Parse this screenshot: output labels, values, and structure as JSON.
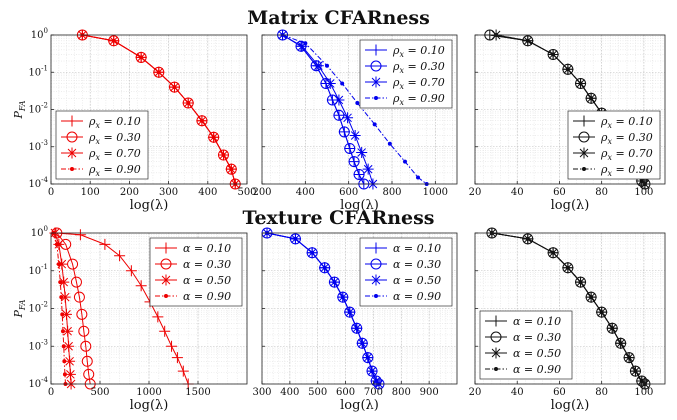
{
  "figure": {
    "top_title": "Matrix CFARness",
    "bottom_title": "Texture CFARness"
  },
  "chart_data": [
    {
      "type": "line",
      "row": "top",
      "color": "#ee0000",
      "xlabel": "log(λ)",
      "ylabel": "P_FA",
      "xlim": [
        0,
        500
      ],
      "xticks": [
        0,
        100,
        200,
        300,
        400,
        500
      ],
      "ylim": [
        0.0001,
        1
      ],
      "yscale": "log",
      "yticks": [
        "10^0",
        "10^-1",
        "10^-2",
        "10^-3",
        "10^-4"
      ],
      "grid": true,
      "legend_position": "bottom-left",
      "series": [
        {
          "name": "ρ_x = 0.10",
          "marker": "plus",
          "x": [
            80,
            160,
            230,
            275,
            315,
            350,
            385,
            415,
            440,
            460,
            470
          ],
          "y": [
            1,
            0.7,
            0.25,
            0.1,
            0.04,
            0.015,
            0.005,
            0.0018,
            0.0006,
            0.00025,
            0.0001
          ]
        },
        {
          "name": "ρ_x = 0.30",
          "marker": "circle",
          "x": [
            80,
            160,
            230,
            275,
            315,
            350,
            385,
            415,
            440,
            460,
            470
          ],
          "y": [
            1,
            0.7,
            0.25,
            0.1,
            0.04,
            0.015,
            0.005,
            0.0018,
            0.0006,
            0.00025,
            0.0001
          ]
        },
        {
          "name": "ρ_x = 0.70",
          "marker": "star",
          "x": [
            80,
            160,
            230,
            275,
            315,
            350,
            385,
            415,
            440,
            460,
            470
          ],
          "y": [
            1,
            0.7,
            0.25,
            0.1,
            0.04,
            0.015,
            0.005,
            0.0018,
            0.0006,
            0.00025,
            0.0001
          ]
        },
        {
          "name": "ρ_x = 0.90",
          "marker": "dot-dash",
          "x": [
            80,
            160,
            230,
            275,
            315,
            350,
            385,
            415,
            440,
            460,
            470
          ],
          "y": [
            1,
            0.7,
            0.25,
            0.1,
            0.04,
            0.015,
            0.005,
            0.0018,
            0.0006,
            0.00025,
            0.0001
          ]
        }
      ]
    },
    {
      "type": "line",
      "row": "top",
      "color": "#0000ee",
      "xlabel": "log(λ)",
      "ylabel": "",
      "xlim": [
        200,
        1100
      ],
      "xticks": [
        200,
        400,
        600,
        800,
        1000
      ],
      "ylim": [
        0.0001,
        1
      ],
      "yscale": "log",
      "grid": true,
      "legend_position": "top-right",
      "series": [
        {
          "name": "ρ_x = 0.10",
          "marker": "plus",
          "x": [
            295,
            380,
            450,
            495,
            525,
            555,
            580,
            605,
            625,
            648,
            670
          ],
          "y": [
            1,
            0.5,
            0.15,
            0.05,
            0.018,
            0.007,
            0.0025,
            0.0009,
            0.0004,
            0.00018,
            0.0001
          ]
        },
        {
          "name": "ρ_x = 0.30",
          "marker": "circle",
          "x": [
            295,
            380,
            450,
            495,
            525,
            555,
            580,
            605,
            625,
            648,
            670
          ],
          "y": [
            1,
            0.5,
            0.15,
            0.05,
            0.018,
            0.007,
            0.0025,
            0.0009,
            0.0004,
            0.00018,
            0.0001
          ]
        },
        {
          "name": "ρ_x = 0.70",
          "marker": "star",
          "x": [
            295,
            385,
            460,
            515,
            555,
            595,
            630,
            660,
            690,
            712
          ],
          "y": [
            1,
            0.5,
            0.15,
            0.05,
            0.018,
            0.006,
            0.002,
            0.0007,
            0.00025,
            0.0001
          ]
        },
        {
          "name": "ρ_x = 0.90",
          "marker": "dot-dash",
          "x": [
            295,
            400,
            500,
            570,
            640,
            720,
            790,
            860,
            920,
            960
          ],
          "y": [
            1,
            0.6,
            0.15,
            0.05,
            0.015,
            0.004,
            0.0012,
            0.0004,
            0.00015,
            0.0001
          ]
        }
      ]
    },
    {
      "type": "line",
      "row": "top",
      "color": "#111111",
      "xlabel": "log(λ)",
      "ylabel": "",
      "xlim": [
        20,
        110
      ],
      "xticks": [
        20,
        40,
        60,
        80,
        100
      ],
      "ylim": [
        0.0001,
        1
      ],
      "yscale": "log",
      "grid": true,
      "legend_position": "bottom-right",
      "series": [
        {
          "name": "ρ_x = 0.10",
          "marker": "plus",
          "x": [
            27,
            45,
            57,
            64,
            70,
            75,
            80,
            85,
            89,
            93,
            96,
            99,
            100.5
          ],
          "y": [
            1,
            0.7,
            0.3,
            0.12,
            0.05,
            0.02,
            0.008,
            0.003,
            0.0012,
            0.0005,
            0.00022,
            0.00012,
            0.0001
          ]
        },
        {
          "name": "ρ_x = 0.30",
          "marker": "circle",
          "x": [
            27,
            45,
            57,
            64,
            70,
            75,
            80,
            85,
            89,
            93,
            96,
            99,
            100.5
          ],
          "y": [
            1,
            0.7,
            0.3,
            0.12,
            0.05,
            0.02,
            0.008,
            0.003,
            0.0012,
            0.0005,
            0.00022,
            0.00012,
            0.0001
          ]
        },
        {
          "name": "ρ_x = 0.70",
          "marker": "star",
          "x": [
            30,
            45,
            57,
            64,
            70,
            75,
            80,
            85,
            89,
            93,
            96,
            99,
            100.5
          ],
          "y": [
            1,
            0.7,
            0.3,
            0.12,
            0.05,
            0.02,
            0.008,
            0.003,
            0.0012,
            0.0005,
            0.00022,
            0.00012,
            0.0001
          ]
        },
        {
          "name": "ρ_x = 0.90",
          "marker": "dot-dash",
          "x": [
            30,
            45,
            57,
            64,
            70,
            75,
            80,
            85,
            89,
            93,
            96,
            99,
            100.5
          ],
          "y": [
            1,
            0.7,
            0.3,
            0.12,
            0.05,
            0.02,
            0.008,
            0.003,
            0.0012,
            0.0005,
            0.00022,
            0.00012,
            0.0001
          ]
        }
      ]
    },
    {
      "type": "line",
      "row": "bottom",
      "color": "#ee0000",
      "xlabel": "log(λ)",
      "ylabel": "P_FA",
      "xlim": [
        0,
        2000
      ],
      "xticks": [
        0,
        500,
        1000,
        1500
      ],
      "ylim": [
        0.0001,
        1
      ],
      "yscale": "log",
      "yticks": [
        "10^0",
        "10^-1",
        "10^-2",
        "10^-3",
        "10^-4"
      ],
      "grid": true,
      "legend_position": "top-right",
      "series": [
        {
          "name": "α = 0.10",
          "marker": "plus",
          "x": [
            50,
            300,
            550,
            700,
            820,
            920,
            1010,
            1090,
            1160,
            1230,
            1290,
            1350,
            1400
          ],
          "y": [
            1,
            0.9,
            0.5,
            0.25,
            0.1,
            0.04,
            0.015,
            0.006,
            0.0025,
            0.001,
            0.0005,
            0.00022,
            0.0001
          ]
        },
        {
          "name": "α = 0.30",
          "marker": "circle",
          "x": [
            60,
            150,
            220,
            260,
            290,
            315,
            335,
            355,
            370,
            385,
            400
          ],
          "y": [
            1,
            0.5,
            0.15,
            0.05,
            0.02,
            0.007,
            0.0025,
            0.001,
            0.0004,
            0.00018,
            0.0001
          ]
        },
        {
          "name": "α = 0.50",
          "marker": "star",
          "x": [
            40,
            80,
            110,
            130,
            145,
            158,
            170,
            180,
            190,
            198,
            205
          ],
          "y": [
            1,
            0.5,
            0.15,
            0.05,
            0.02,
            0.007,
            0.0025,
            0.001,
            0.0004,
            0.00018,
            0.0001
          ]
        },
        {
          "name": "α = 0.90",
          "marker": "dot-dash",
          "x": [
            30,
            60,
            80,
            95,
            105,
            115,
            122,
            130,
            136,
            142,
            148
          ],
          "y": [
            1,
            0.5,
            0.15,
            0.05,
            0.02,
            0.007,
            0.0025,
            0.001,
            0.0004,
            0.00018,
            0.0001
          ]
        }
      ]
    },
    {
      "type": "line",
      "row": "bottom",
      "color": "#0000ee",
      "xlabel": "log(λ)",
      "ylabel": "",
      "xlim": [
        300,
        1000
      ],
      "xticks": [
        300,
        400,
        500,
        600,
        700,
        800,
        900
      ],
      "ylim": [
        0.0001,
        1
      ],
      "yscale": "log",
      "grid": true,
      "legend_position": "top-right",
      "series": [
        {
          "name": "α = 0.10",
          "marker": "plus",
          "x": [
            318,
            420,
            480,
            525,
            560,
            590,
            615,
            640,
            660,
            680,
            695,
            710,
            720
          ],
          "y": [
            1,
            0.7,
            0.3,
            0.12,
            0.05,
            0.02,
            0.008,
            0.003,
            0.0012,
            0.0005,
            0.00022,
            0.00012,
            0.0001
          ]
        },
        {
          "name": "α = 0.30",
          "marker": "circle",
          "x": [
            318,
            420,
            480,
            525,
            560,
            590,
            615,
            640,
            660,
            680,
            695,
            710,
            720
          ],
          "y": [
            1,
            0.7,
            0.3,
            0.12,
            0.05,
            0.02,
            0.008,
            0.003,
            0.0012,
            0.0005,
            0.00022,
            0.00012,
            0.0001
          ]
        },
        {
          "name": "α = 0.50",
          "marker": "star",
          "x": [
            318,
            420,
            480,
            525,
            560,
            590,
            615,
            640,
            660,
            680,
            695,
            710,
            720
          ],
          "y": [
            1,
            0.7,
            0.3,
            0.12,
            0.05,
            0.02,
            0.008,
            0.003,
            0.0012,
            0.0005,
            0.00022,
            0.00012,
            0.0001
          ]
        },
        {
          "name": "α = 0.90",
          "marker": "dot-dash",
          "x": [
            318,
            420,
            480,
            525,
            560,
            590,
            615,
            640,
            660,
            680,
            695,
            710,
            720
          ],
          "y": [
            1,
            0.7,
            0.3,
            0.12,
            0.05,
            0.02,
            0.008,
            0.003,
            0.0012,
            0.0005,
            0.00022,
            0.00012,
            0.0001
          ]
        }
      ]
    },
    {
      "type": "line",
      "row": "bottom",
      "color": "#111111",
      "xlabel": "log(λ)",
      "ylabel": "",
      "xlim": [
        20,
        110
      ],
      "xticks": [
        20,
        40,
        60,
        80,
        100
      ],
      "ylim": [
        0.0001,
        1
      ],
      "yscale": "log",
      "grid": true,
      "legend_position": "bottom-left",
      "series": [
        {
          "name": "α = 0.10",
          "marker": "plus",
          "x": [
            28,
            45,
            57,
            64,
            70,
            75,
            80,
            85,
            89,
            93,
            96,
            99,
            100.5
          ],
          "y": [
            1,
            0.7,
            0.3,
            0.12,
            0.05,
            0.02,
            0.008,
            0.003,
            0.0012,
            0.0005,
            0.00022,
            0.00012,
            0.0001
          ]
        },
        {
          "name": "α = 0.30",
          "marker": "circle",
          "x": [
            28,
            45,
            57,
            64,
            70,
            75,
            80,
            85,
            89,
            93,
            96,
            99,
            100.5
          ],
          "y": [
            1,
            0.7,
            0.3,
            0.12,
            0.05,
            0.02,
            0.008,
            0.003,
            0.0012,
            0.0005,
            0.00022,
            0.00012,
            0.0001
          ]
        },
        {
          "name": "α = 0.50",
          "marker": "star",
          "x": [
            28,
            45,
            57,
            64,
            70,
            75,
            80,
            85,
            89,
            93,
            96,
            99,
            100.5
          ],
          "y": [
            1,
            0.7,
            0.3,
            0.12,
            0.05,
            0.02,
            0.008,
            0.003,
            0.0012,
            0.0005,
            0.00022,
            0.00012,
            0.0001
          ]
        },
        {
          "name": "α = 0.90",
          "marker": "dot-dash",
          "x": [
            28,
            45,
            57,
            64,
            70,
            75,
            80,
            85,
            89,
            93,
            96,
            99,
            100.5
          ],
          "y": [
            1,
            0.7,
            0.3,
            0.12,
            0.05,
            0.02,
            0.008,
            0.003,
            0.0012,
            0.0005,
            0.00022,
            0.00012,
            0.0001
          ]
        }
      ]
    }
  ]
}
